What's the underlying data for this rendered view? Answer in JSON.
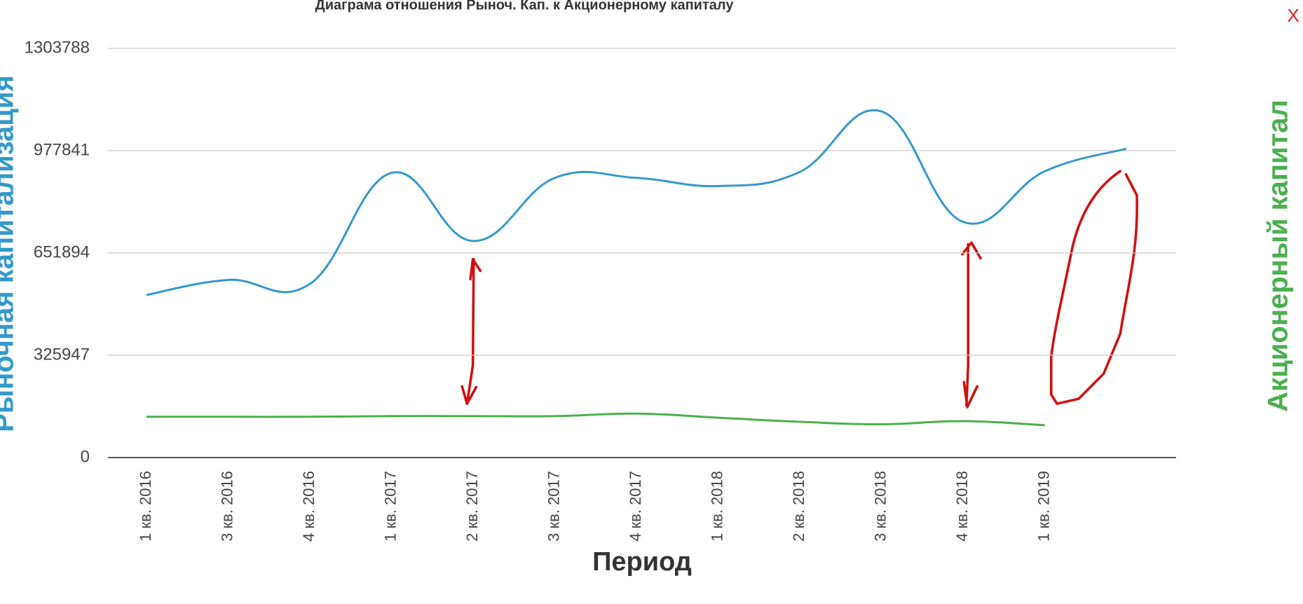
{
  "close_button": "X",
  "chart_data": {
    "type": "line",
    "title": "Диаграма отношения Рыноч. Кап. к Акционерному капиталу",
    "x_label": "Период",
    "y_label": "Рыночная капитализация",
    "y2_label": "Акционерный капитал",
    "categories": [
      "1 кв. 2016",
      "3 кв. 2016",
      "4 кв. 2016",
      "1 кв. 2017",
      "2 кв. 2017",
      "3 кв. 2017",
      "4 кв. 2017",
      "1 кв. 2018",
      "2 кв. 2018",
      "3 кв. 2018",
      "4 кв. 2018",
      "1 кв. 2019",
      null
    ],
    "series": [
      {
        "name": "Рыночная капитализация",
        "color": "#3399cc",
        "values": [
          518000,
          566000,
          553000,
          907000,
          690000,
          891000,
          891000,
          865000,
          910000,
          1103000,
          751000,
          912000,
          984000
        ]
      },
      {
        "name": "Акционерный капитал",
        "color": "#4caf50",
        "values": [
          130000,
          130000,
          130000,
          132000,
          132000,
          132000,
          140000,
          127000,
          114000,
          106000,
          116000,
          103000,
          null
        ]
      }
    ],
    "ylim": [
      0,
      1303788
    ],
    "yticks": [
      0,
      325947,
      651894,
      977841,
      1303788
    ],
    "grid": true
  }
}
